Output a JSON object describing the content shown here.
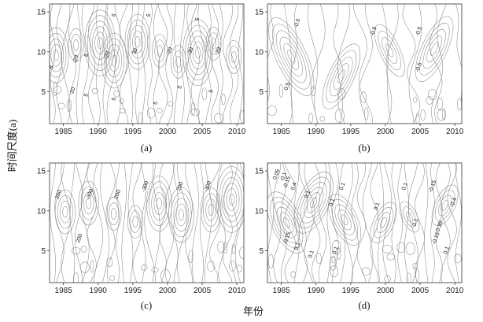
{
  "figure": {
    "ylabel": "时间尺度(a)",
    "xlabel": "年份",
    "line_color": "#8a8a8a",
    "frame_color": "#333333"
  },
  "chart_data": [
    {
      "type": "contour",
      "panel": "(a)",
      "xlim": [
        1983,
        2011
      ],
      "ylim": [
        1,
        16
      ],
      "x_ticks": [
        1985,
        1990,
        1995,
        2000,
        2005,
        2010
      ],
      "y_ticks": [
        5,
        10,
        15
      ],
      "contour_labels": [
        {
          "text": "5",
          "x": 1983.5,
          "y": 8
        },
        {
          "text": "-20",
          "x": 1987,
          "y": 9
        },
        {
          "text": "5",
          "x": 1988.5,
          "y": 9.5
        },
        {
          "text": "-20",
          "x": 1991.5,
          "y": 9.5
        },
        {
          "text": "5",
          "x": 1992.5,
          "y": 14.5
        },
        {
          "text": "30",
          "x": 1995.5,
          "y": 10
        },
        {
          "text": "5",
          "x": 1997.5,
          "y": 14.5
        },
        {
          "text": "-20",
          "x": 2000.5,
          "y": 10
        },
        {
          "text": "-30",
          "x": 2003.5,
          "y": 10
        },
        {
          "text": "5",
          "x": 2004.5,
          "y": 14
        },
        {
          "text": "-20",
          "x": 2007.5,
          "y": 10
        },
        {
          "text": "-20",
          "x": 1986.5,
          "y": 5
        },
        {
          "text": "5",
          "x": 1988.5,
          "y": 4.5
        },
        {
          "text": "5",
          "x": 1992.5,
          "y": 4
        },
        {
          "text": "5",
          "x": 1998.5,
          "y": 3.5
        },
        {
          "text": "5",
          "x": 2002,
          "y": 5.5
        },
        {
          "text": "5",
          "x": 2006.5,
          "y": 5
        }
      ]
    },
    {
      "type": "contour",
      "panel": "(b)",
      "xlim": [
        1983,
        2011
      ],
      "ylim": [
        1,
        16
      ],
      "x_ticks": [
        1985,
        1990,
        1995,
        2000,
        2005,
        2010
      ],
      "y_ticks": [
        5,
        10,
        15
      ],
      "contour_labels": [
        {
          "text": "-0.5",
          "x": 1987.5,
          "y": 13.5
        },
        {
          "text": "-0.5",
          "x": 1998.5,
          "y": 12.5
        },
        {
          "text": "-0.5",
          "x": 2005,
          "y": 12.5
        },
        {
          "text": "-0.5",
          "x": 2005,
          "y": 8
        },
        {
          "text": "-0.5",
          "x": 1986,
          "y": 5.5
        }
      ]
    },
    {
      "type": "contour",
      "panel": "(c)",
      "xlim": [
        1983,
        2011
      ],
      "ylim": [
        1,
        16
      ],
      "x_ticks": [
        1985,
        1990,
        1995,
        2000,
        2005,
        2010
      ],
      "y_ticks": [
        5,
        10,
        15
      ],
      "contour_labels": [
        {
          "text": "200",
          "x": 1984.5,
          "y": 12
        },
        {
          "text": "-300",
          "x": 1989,
          "y": 12
        },
        {
          "text": "200",
          "x": 1993,
          "y": 12
        },
        {
          "text": "-300",
          "x": 1997,
          "y": 13
        },
        {
          "text": "200",
          "x": 2002,
          "y": 13
        },
        {
          "text": "-300",
          "x": 2006,
          "y": 13
        },
        {
          "text": "200",
          "x": 1987.5,
          "y": 6.5
        }
      ]
    },
    {
      "type": "contour",
      "panel": "(d)",
      "xlim": [
        1983,
        2011
      ],
      "ylim": [
        1,
        16
      ],
      "x_ticks": [
        1985,
        1990,
        1995,
        2000,
        2005,
        2010
      ],
      "y_ticks": [
        5,
        10,
        15
      ],
      "contour_labels": [
        {
          "text": "0.05",
          "x": 1984.5,
          "y": 14.5
        },
        {
          "text": "-0.1",
          "x": 1985.5,
          "y": 14.2
        },
        {
          "text": "-0.15",
          "x": 1986,
          "y": 13.5
        },
        {
          "text": "0.4",
          "x": 1987,
          "y": 13
        },
        {
          "text": "0.1",
          "x": 1989,
          "y": 12
        },
        {
          "text": "0.1",
          "x": 1994,
          "y": 13
        },
        {
          "text": "0.1",
          "x": 2003,
          "y": 13
        },
        {
          "text": "-0.15",
          "x": 2007,
          "y": 13
        },
        {
          "text": "-0.4",
          "x": 2010,
          "y": 11
        },
        {
          "text": "0.1",
          "x": 1992.5,
          "y": 11
        },
        {
          "text": "0.1",
          "x": 1999,
          "y": 10.5
        },
        {
          "text": "0.1",
          "x": 2004.5,
          "y": 8.5
        },
        {
          "text": "0.35",
          "x": 2008,
          "y": 8
        },
        {
          "text": "-0.15",
          "x": 2007.5,
          "y": 6.5
        },
        {
          "text": "0.1",
          "x": 2009,
          "y": 5
        },
        {
          "text": "-0.15",
          "x": 1986,
          "y": 6.5
        },
        {
          "text": "0.1",
          "x": 1987.5,
          "y": 5.5
        },
        {
          "text": "0.1",
          "x": 1989.5,
          "y": 4.5
        },
        {
          "text": "0.1",
          "x": 1993,
          "y": 5
        }
      ]
    }
  ]
}
